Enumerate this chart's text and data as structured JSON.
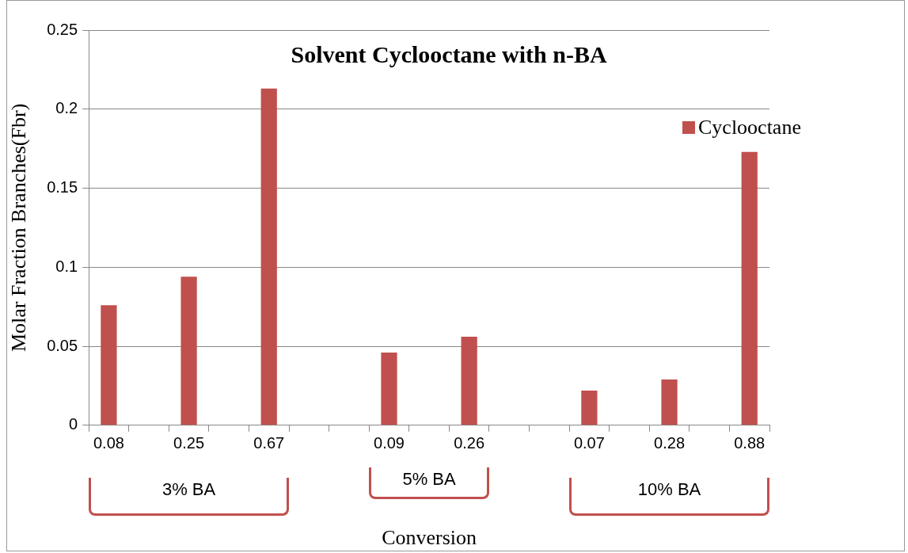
{
  "chart_data": {
    "type": "bar",
    "title": "Solvent Cyclooctane with n-BA",
    "xlabel": "Conversion",
    "ylabel": "Molar Fraction Branches(Fbr)",
    "categories": [
      "0.08",
      null,
      "0.25",
      null,
      "0.67",
      null,
      null,
      "0.09",
      null,
      "0.26",
      null,
      null,
      "0.07",
      null,
      "0.28",
      null,
      "0.88"
    ],
    "series": [
      {
        "name": "Cyclooctane",
        "color": "#c0504d",
        "values": [
          0.076,
          null,
          0.094,
          null,
          0.213,
          null,
          null,
          0.046,
          null,
          0.056,
          null,
          null,
          0.022,
          null,
          0.029,
          null,
          0.173
        ]
      }
    ],
    "ylim": [
      0,
      0.25
    ],
    "yticks": [
      0,
      0.05,
      0.1,
      0.15,
      0.2,
      0.25
    ],
    "grid": "y",
    "legend": "right",
    "annotations": [
      "3% BA",
      "5% BA",
      "10% BA"
    ]
  }
}
